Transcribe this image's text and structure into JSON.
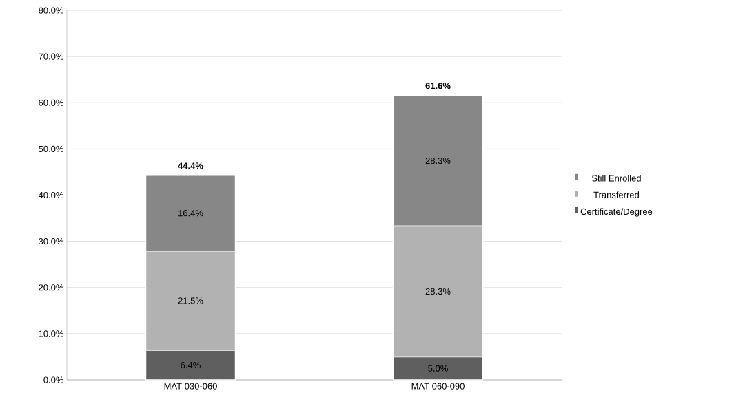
{
  "chart_data": {
    "type": "bar",
    "stacked": true,
    "categories": [
      "MAT 030-060",
      "MAT 060-090"
    ],
    "series": [
      {
        "name": "Certificate/Degree",
        "color": "#5f5f5f",
        "values": [
          6.4,
          5.0
        ],
        "value_labels": [
          "6.4%",
          "5.0%"
        ]
      },
      {
        "name": "Transferred",
        "color": "#b2b2b2",
        "values": [
          21.5,
          28.3
        ],
        "value_labels": [
          "21.5%",
          "28.3%"
        ]
      },
      {
        "name": "Still Enrolled",
        "color": "#878787",
        "values": [
          16.4,
          28.3
        ],
        "value_labels": [
          "16.4%",
          "28.3%"
        ]
      }
    ],
    "totals": [
      "44.4%",
      "61.6%"
    ],
    "ylim": [
      0,
      80
    ],
    "yticks": [
      {
        "value": 0,
        "label": "0.0%"
      },
      {
        "value": 10,
        "label": "10.0%"
      },
      {
        "value": 20,
        "label": "20.0%"
      },
      {
        "value": 30,
        "label": "30.0%"
      },
      {
        "value": 40,
        "label": "40.0%"
      },
      {
        "value": 50,
        "label": "50.0%"
      },
      {
        "value": 60,
        "label": "60.0%"
      },
      {
        "value": 70,
        "label": "70.0%"
      },
      {
        "value": 80,
        "label": "80.0%"
      }
    ],
    "grid": "y",
    "legend": "right"
  }
}
